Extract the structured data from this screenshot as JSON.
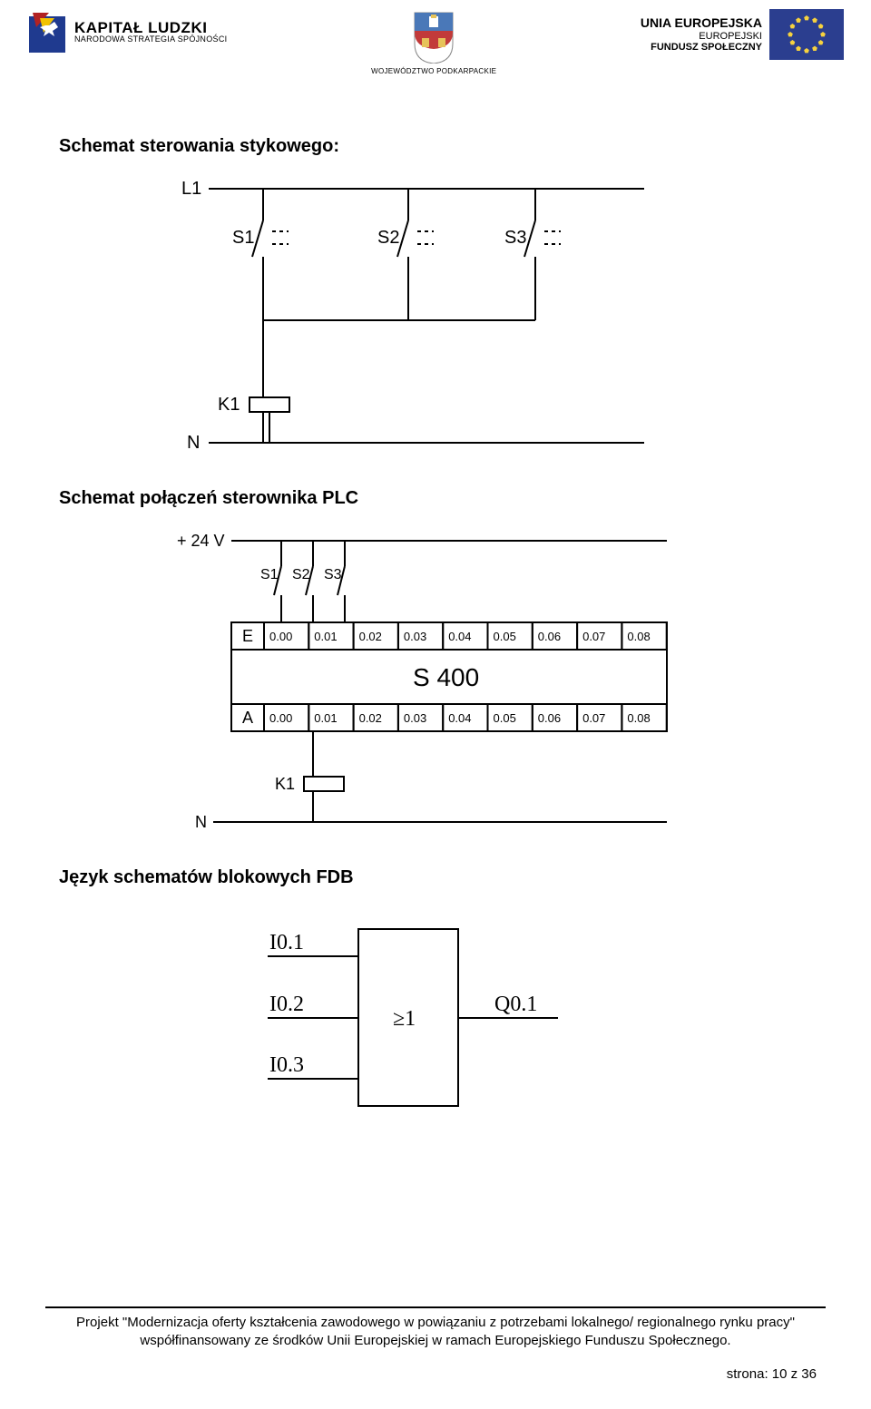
{
  "header": {
    "kapital_title": "KAPITAŁ LUDZKI",
    "kapital_sub": "NARODOWA STRATEGIA SPÓJNOŚCI",
    "wojewodztwo": "WOJEWÓDZTWO PODKARPACKIE",
    "eu_title": "UNIA EUROPEJSKA",
    "eu_sub1": "EUROPEJSKI",
    "eu_sub2": "FUNDUSZ SPOŁECZNY"
  },
  "sections": {
    "title1": "Schemat sterowania stykowego:",
    "title2": "Schemat połączeń sterownika PLC",
    "title3": "Język schematów blokowych FDB"
  },
  "diagram1": {
    "labels": {
      "l1": "L1",
      "s1": "S1",
      "s2": "S2",
      "s3": "S3",
      "k1": "K1",
      "n": "N"
    }
  },
  "diagram2": {
    "supply": "+ 24 V",
    "switches": [
      "S1",
      "S2",
      "S3"
    ],
    "row_e": "E",
    "row_a": "A",
    "addrs": [
      "0.00",
      "0.01",
      "0.02",
      "0.03",
      "0.04",
      "0.05",
      "0.06",
      "0.07",
      "0.08"
    ],
    "device": "S 400",
    "k1": "K1",
    "n": "N"
  },
  "diagram3": {
    "inputs": [
      "I0.1",
      "I0.2",
      "I0.3"
    ],
    "op": "≥1",
    "output": "Q0.1"
  },
  "footer": {
    "text": "Projekt \"Modernizacja oferty kształcenia zawodowego w powiązaniu z potrzebami lokalnego/ regionalnego rynku pracy\" współfinansowany ze środków Unii Europejskiej w ramach Europejskiego Funduszu Społecznego.",
    "page": "strona: 10 z 36"
  },
  "colors": {
    "text": "#000000",
    "stroke": "#000000",
    "eu_flag_bg": "#2b3e8f",
    "eu_star": "#f7d23e",
    "kl_blue": "#1f3a8f",
    "kl_red": "#b22222",
    "kl_yellow": "#f2c200",
    "shield_red": "#c23a3a",
    "shield_blue": "#4a78b8",
    "shield_yellow": "#e6c35a"
  }
}
